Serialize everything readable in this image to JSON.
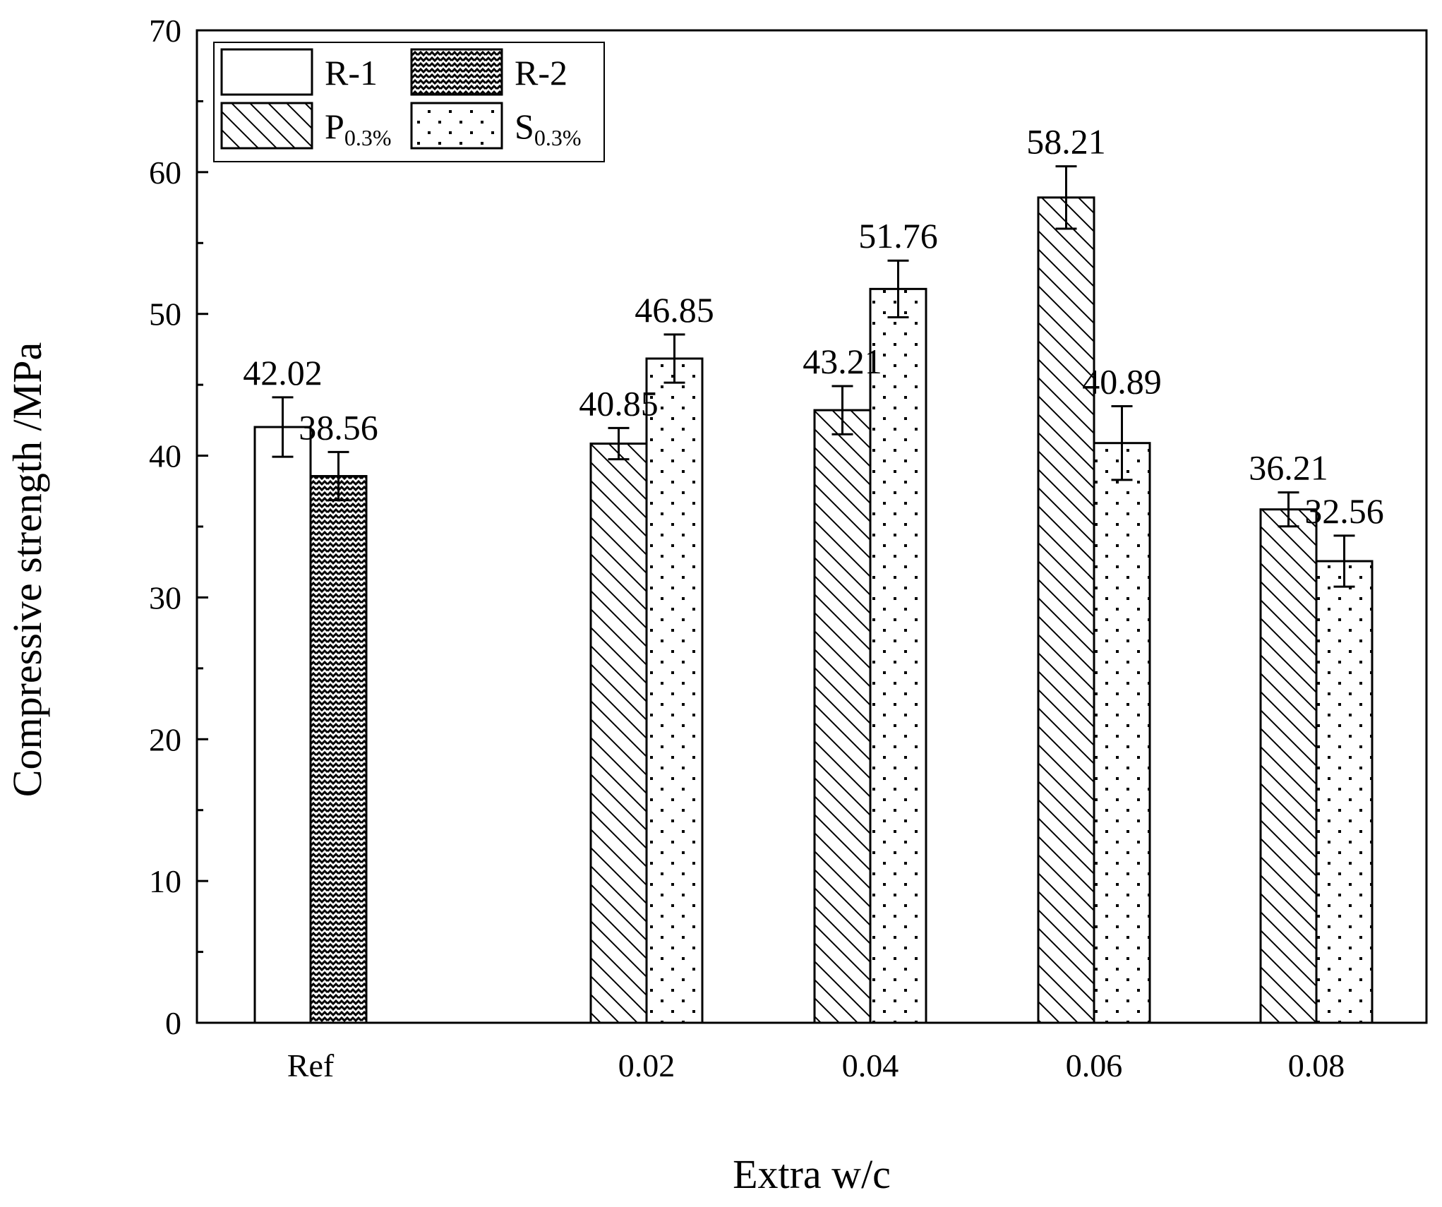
{
  "chart_data": {
    "type": "bar",
    "xlabel": "Extra w/c",
    "ylabel": "Compressive strength /MPa",
    "ylim": [
      0,
      70
    ],
    "yticks": [
      0,
      10,
      20,
      30,
      40,
      50,
      60,
      70
    ],
    "categories": [
      "Ref",
      "0.02",
      "0.04",
      "0.06",
      "0.08"
    ],
    "grid": false,
    "legend_position": "top-left",
    "bar_fill": "#ffffff",
    "bar_stroke": "#000000",
    "series": [
      {
        "name": "R-1",
        "name_main": "R-1",
        "name_sub": "",
        "pattern": "plain",
        "values": [
          42.02,
          null,
          null,
          null,
          null
        ],
        "errors": [
          2.1,
          null,
          null,
          null,
          null
        ],
        "labels": [
          "42.02",
          null,
          null,
          null,
          null
        ]
      },
      {
        "name": "R-2",
        "name_main": "R-2",
        "name_sub": "",
        "pattern": "zigzag",
        "values": [
          38.56,
          null,
          null,
          null,
          null
        ],
        "errors": [
          1.7,
          null,
          null,
          null,
          null
        ],
        "labels": [
          "38.56",
          null,
          null,
          null,
          null
        ]
      },
      {
        "name": "P0.3%",
        "name_main": "P",
        "name_sub": "0.3%",
        "pattern": "diagonal",
        "values": [
          null,
          40.85,
          43.21,
          58.21,
          36.21
        ],
        "errors": [
          null,
          1.1,
          1.7,
          2.2,
          1.2
        ],
        "labels": [
          null,
          "40.85",
          "43.21",
          "58.21",
          "36.21"
        ]
      },
      {
        "name": "S0.3%",
        "name_main": "S",
        "name_sub": "0.3%",
        "pattern": "dots",
        "values": [
          null,
          46.85,
          51.76,
          40.89,
          32.56
        ],
        "errors": [
          null,
          1.7,
          2.0,
          2.6,
          1.8
        ],
        "labels": [
          null,
          "46.85",
          "51.76",
          "40.89",
          "32.56"
        ]
      }
    ]
  }
}
